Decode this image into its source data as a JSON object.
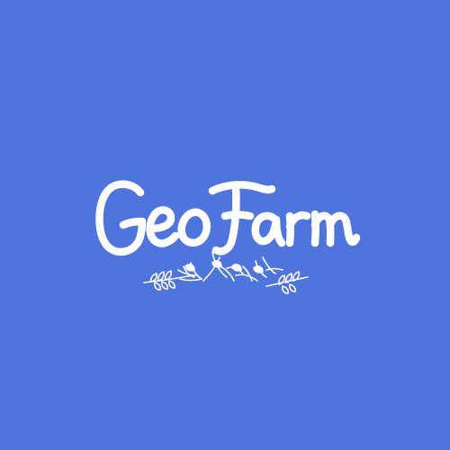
{
  "colors": {
    "background": "#4E74DE",
    "foreground": "#FFFFFF"
  },
  "logo": {
    "wordmark": "GeoFarm",
    "ornament_icon": "leaf-branches-icon"
  }
}
